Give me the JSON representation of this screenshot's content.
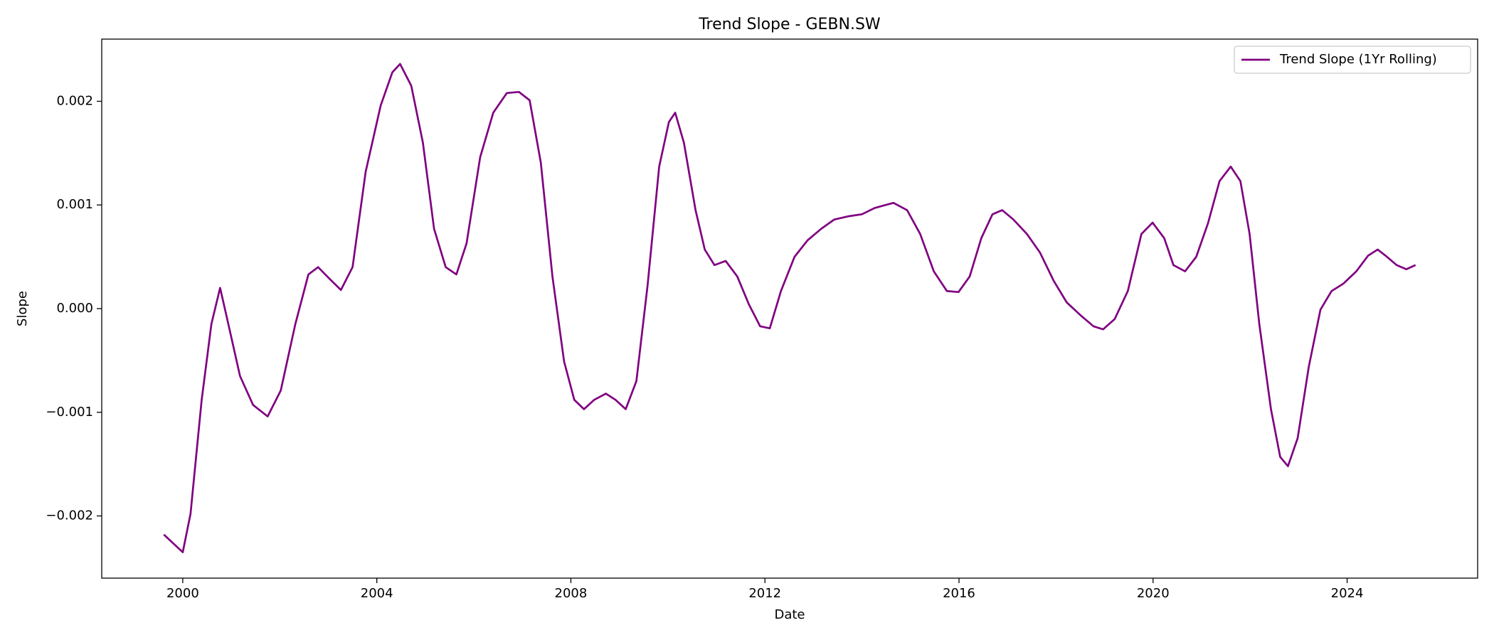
{
  "chart_data": {
    "type": "line",
    "title": "Trend Slope - GEBN.SW",
    "x_label": "Date",
    "y_label": "Slope",
    "x": [
      1999.61,
      2000.0,
      2000.16,
      2000.39,
      2000.59,
      2000.77,
      2000.94,
      2001.18,
      2001.45,
      2001.75,
      2002.02,
      2002.32,
      2002.59,
      2002.79,
      2003.02,
      2003.26,
      2003.5,
      2003.77,
      2004.08,
      2004.32,
      2004.48,
      2004.71,
      2004.95,
      2005.18,
      2005.42,
      2005.64,
      2005.85,
      2006.13,
      2006.4,
      2006.68,
      2006.93,
      2007.15,
      2007.38,
      2007.62,
      2007.86,
      2008.07,
      2008.27,
      2008.48,
      2008.72,
      2008.92,
      2009.13,
      2009.35,
      2009.58,
      2009.82,
      2010.02,
      2010.15,
      2010.33,
      2010.57,
      2010.76,
      2010.96,
      2011.19,
      2011.43,
      2011.67,
      2011.9,
      2012.1,
      2012.33,
      2012.61,
      2012.88,
      2013.16,
      2013.43,
      2013.71,
      2014.0,
      2014.26,
      2014.49,
      2014.65,
      2014.93,
      2015.2,
      2015.48,
      2015.75,
      2015.99,
      2016.22,
      2016.46,
      2016.69,
      2016.89,
      2017.12,
      2017.4,
      2017.67,
      2017.95,
      2018.22,
      2018.52,
      2018.77,
      2018.97,
      2019.21,
      2019.48,
      2019.76,
      2019.99,
      2020.23,
      2020.42,
      2020.66,
      2020.89,
      2021.13,
      2021.37,
      2021.6,
      2021.8,
      2021.99,
      2022.19,
      2022.43,
      2022.62,
      2022.78,
      2022.98,
      2023.21,
      2023.45,
      2023.68,
      2023.92,
      2024.19,
      2024.43,
      2024.63,
      2024.82,
      2025.02,
      2025.22,
      2025.41
    ],
    "series": [
      {
        "name": "Trend Slope (1Yr Rolling)",
        "color": "#800080",
        "values": [
          -0.00218,
          -0.00235,
          -0.00198,
          -0.00088,
          -0.00015,
          0.0002,
          -0.00015,
          -0.00065,
          -0.00093,
          -0.00104,
          -0.00079,
          -0.00015,
          0.00033,
          0.0004,
          0.00029,
          0.00018,
          0.0004,
          0.00132,
          0.00196,
          0.00228,
          0.00236,
          0.00215,
          0.0016,
          0.00077,
          0.0004,
          0.00033,
          0.00063,
          0.00146,
          0.00189,
          0.00208,
          0.00209,
          0.00201,
          0.00141,
          0.00031,
          -0.00051,
          -0.00088,
          -0.00097,
          -0.00088,
          -0.00082,
          -0.00088,
          -0.00097,
          -0.0007,
          0.00022,
          0.00137,
          0.0018,
          0.00189,
          0.0016,
          0.00095,
          0.00057,
          0.00042,
          0.00046,
          0.00031,
          4e-05,
          -0.00017,
          -0.00019,
          0.00017,
          0.0005,
          0.00066,
          0.00077,
          0.00086,
          0.00089,
          0.00091,
          0.00097,
          0.001,
          0.00102,
          0.00095,
          0.00072,
          0.00036,
          0.00017,
          0.00016,
          0.00031,
          0.00068,
          0.00091,
          0.00095,
          0.00086,
          0.00072,
          0.00054,
          0.00027,
          6e-05,
          -7e-05,
          -0.00017,
          -0.0002,
          -0.0001,
          0.00017,
          0.00072,
          0.00083,
          0.00068,
          0.00042,
          0.00036,
          0.0005,
          0.00082,
          0.00123,
          0.00137,
          0.00123,
          0.00072,
          -0.00015,
          -0.00097,
          -0.00143,
          -0.00152,
          -0.00125,
          -0.00056,
          -1e-05,
          0.00017,
          0.00024,
          0.00036,
          0.00051,
          0.00057,
          0.0005,
          0.00042,
          0.00038,
          0.00042
        ]
      }
    ],
    "xlim": [
      1998.33,
      2026.69
    ],
    "xticks": [
      2000,
      2004,
      2008,
      2012,
      2016,
      2020,
      2024
    ],
    "ylim": [
      -0.0026,
      0.0026
    ],
    "yticks": [
      {
        "value": -0.002,
        "label": "−0.002"
      },
      {
        "value": -0.001,
        "label": "−0.001"
      },
      {
        "value": 0,
        "label": "0.000"
      },
      0.001,
      0.002
    ],
    "grid": false,
    "legend": "upper right"
  }
}
